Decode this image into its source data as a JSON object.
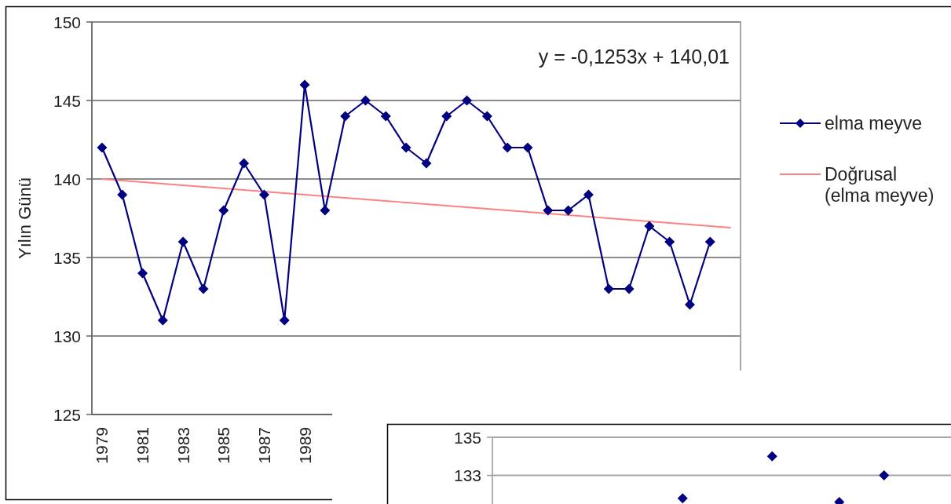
{
  "chart_data": [
    {
      "type": "line",
      "categories": [
        "1979",
        null,
        "1981",
        null,
        "1983",
        null,
        "1985",
        null,
        "1987",
        null,
        "1989",
        null,
        null,
        null,
        null,
        null,
        null,
        null,
        null,
        null,
        null,
        null,
        null,
        null,
        null,
        null,
        null,
        null,
        null,
        null,
        null,
        null
      ],
      "series": [
        {
          "name": "elma meyve",
          "color": "#000080",
          "marker": "diamond",
          "values": [
            142,
            139,
            134,
            131,
            136,
            133,
            138,
            141,
            139,
            131,
            146,
            138,
            144,
            145,
            144,
            142,
            141,
            144,
            145,
            144,
            142,
            142,
            138,
            138,
            139,
            133,
            133,
            137,
            136,
            132,
            136,
            null
          ]
        },
        {
          "name": "Doğrusal (elma meyve)",
          "color": "#ff8080",
          "marker": "none",
          "values": [
            140.0,
            139.9,
            139.8,
            139.7,
            139.6,
            139.5,
            139.4,
            139.3,
            139.2,
            139.1,
            139.0,
            138.9,
            138.8,
            138.7,
            138.6,
            138.5,
            138.4,
            138.3,
            138.2,
            138.1,
            138.0,
            137.9,
            137.8,
            137.7,
            137.6,
            137.5,
            137.4,
            137.3,
            137.2,
            137.1,
            137.0,
            136.9
          ]
        }
      ],
      "ylabel": "Yılın Günü",
      "ylim": [
        125,
        150
      ],
      "yticks": [
        125,
        130,
        135,
        140,
        145,
        150
      ],
      "grid": "y",
      "legend": "right",
      "annotations": [
        "y = -0,1253x + 140,01"
      ]
    },
    {
      "type": "scatter",
      "categories": [
        null,
        null,
        null,
        null,
        null,
        null,
        null,
        null,
        null,
        null,
        null,
        null,
        null,
        null,
        null,
        null,
        null,
        null,
        null,
        null,
        null
      ],
      "series": [
        {
          "color": "#000080",
          "marker": "diamond",
          "values": [
            null,
            null,
            null,
            null,
            null,
            null,
            null,
            null,
            131.8,
            null,
            null,
            null,
            134,
            null,
            null,
            131.6,
            null,
            133,
            null,
            null,
            null
          ]
        }
      ],
      "ylim": [
        131.5,
        135
      ],
      "yticks": [
        133,
        135
      ],
      "grid": "y"
    }
  ]
}
